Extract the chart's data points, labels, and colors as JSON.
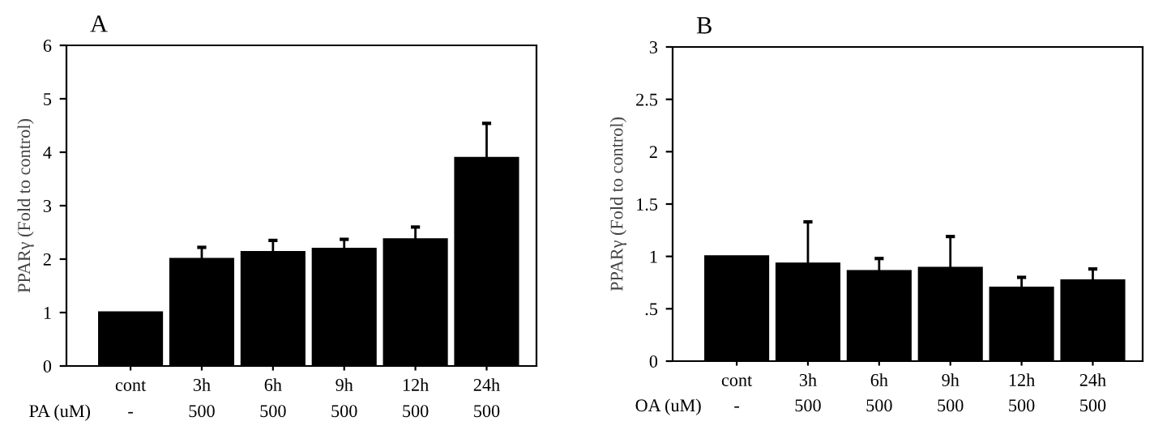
{
  "chart_data": [
    {
      "type": "bar",
      "title": "A",
      "ylabel": "PPARγ (Fold to control)",
      "categories": [
        "cont",
        "3h",
        "6h",
        "9h",
        "12h",
        "24h"
      ],
      "values": [
        1.0,
        2.0,
        2.13,
        2.19,
        2.37,
        3.89
      ],
      "color": "#000000",
      "errors": [
        null,
        [
          2.0,
          2.22
        ],
        [
          2.13,
          2.35
        ],
        [
          2.19,
          2.37
        ],
        [
          2.37,
          2.6
        ],
        [
          3.89,
          4.54
        ]
      ],
      "ylim": [
        0,
        6
      ],
      "yticks": [
        0,
        1,
        2,
        3,
        4,
        5,
        6
      ],
      "grid": false,
      "annotations": [
        "PA (uM)",
        "-",
        "500",
        "500",
        "500",
        "500",
        "500"
      ]
    },
    {
      "type": "bar",
      "title": "B",
      "ylabel": "PPARγ (Fold to control)",
      "categories": [
        "cont",
        "3h",
        "6h",
        "9h",
        "12h",
        "24h"
      ],
      "values": [
        1.0,
        0.93,
        0.86,
        0.89,
        0.7,
        0.77
      ],
      "color": "#000000",
      "errors": [
        null,
        [
          0.93,
          1.33
        ],
        [
          0.86,
          0.98
        ],
        [
          0.89,
          1.19
        ],
        [
          0.7,
          0.8
        ],
        [
          0.77,
          0.88
        ]
      ],
      "ylim": [
        0,
        3
      ],
      "yticks": [
        0,
        {
          "value": 0.5,
          "label": ".5"
        },
        1,
        1.5,
        2,
        2.5,
        3
      ],
      "grid": false,
      "annotations": [
        "OA (uM)",
        "-",
        "500",
        "500",
        "500",
        "500",
        "500"
      ]
    }
  ]
}
